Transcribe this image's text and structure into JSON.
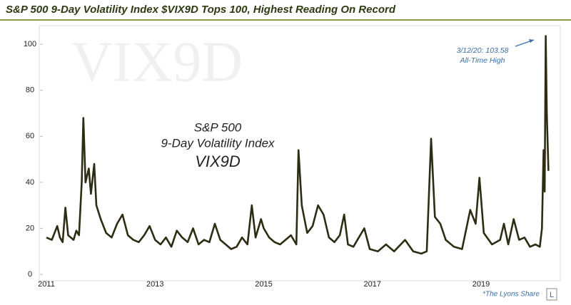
{
  "chart_data": {
    "type": "line",
    "title": "S&P 500 9-Day Volatility Index $VIX9D Tops 100, Highest Reading On Record",
    "watermark": "VIX9D",
    "annotations": [
      "S&P 500",
      "9-Day Volatility Index",
      "VIX9D"
    ],
    "peak_label": "3/12/20: 103.58",
    "peak_note": "All-Time High",
    "source": "*The Lyons Share",
    "logo": "L",
    "x": [
      2011.0,
      2011.1,
      2011.2,
      2011.25,
      2011.3,
      2011.35,
      2011.4,
      2011.5,
      2011.55,
      2011.6,
      2011.65,
      2011.68,
      2011.72,
      2011.78,
      2011.82,
      2011.88,
      2011.92,
      2012.0,
      2012.1,
      2012.2,
      2012.3,
      2012.4,
      2012.5,
      2012.6,
      2012.7,
      2012.8,
      2012.9,
      2013.0,
      2013.1,
      2013.2,
      2013.3,
      2013.4,
      2013.5,
      2013.6,
      2013.7,
      2013.8,
      2013.9,
      2014.0,
      2014.1,
      2014.2,
      2014.3,
      2014.4,
      2014.5,
      2014.6,
      2014.7,
      2014.78,
      2014.85,
      2014.95,
      2015.0,
      2015.1,
      2015.2,
      2015.3,
      2015.4,
      2015.5,
      2015.6,
      2015.64,
      2015.7,
      2015.8,
      2015.9,
      2016.0,
      2016.1,
      2016.2,
      2016.3,
      2016.4,
      2016.48,
      2016.55,
      2016.65,
      2016.75,
      2016.85,
      2016.95,
      2017.1,
      2017.25,
      2017.4,
      2017.6,
      2017.75,
      2017.9,
      2018.0,
      2018.08,
      2018.15,
      2018.25,
      2018.35,
      2018.5,
      2018.65,
      2018.8,
      2018.9,
      2018.97,
      2019.05,
      2019.2,
      2019.35,
      2019.42,
      2019.5,
      2019.6,
      2019.7,
      2019.8,
      2019.9,
      2020.0,
      2020.08,
      2020.12,
      2020.15,
      2020.17,
      2020.19,
      2020.21,
      2020.24
    ],
    "series": [
      {
        "name": "VIX9D",
        "color": "#2e2c12",
        "values": [
          16,
          15,
          21,
          16,
          14,
          29,
          17,
          15,
          19,
          17,
          40,
          68,
          40,
          46,
          35,
          48,
          30,
          24,
          18,
          16,
          22,
          26,
          17,
          15,
          14,
          17,
          21,
          15,
          13,
          16,
          12,
          19,
          16,
          14,
          20,
          13,
          15,
          14,
          22,
          15,
          13,
          11,
          12,
          16,
          13,
          30,
          16,
          24,
          20,
          16,
          14,
          13,
          15,
          17,
          13,
          54,
          30,
          18,
          21,
          30,
          26,
          16,
          14,
          17,
          26,
          13,
          12,
          16,
          20,
          11,
          10,
          13,
          10,
          15,
          10,
          9,
          10,
          59,
          25,
          22,
          15,
          12,
          11,
          28,
          22,
          42,
          18,
          13,
          15,
          22,
          13,
          24,
          15,
          16,
          12,
          13,
          12,
          20,
          54,
          36,
          103.58,
          70,
          45
        ]
      }
    ],
    "xlim": [
      2011,
      2020.3
    ],
    "xticks": [
      2011,
      2013,
      2015,
      2017,
      2019
    ],
    "ylim": [
      0,
      105
    ],
    "yticks": [
      0,
      20,
      40,
      60,
      80,
      100
    ]
  }
}
